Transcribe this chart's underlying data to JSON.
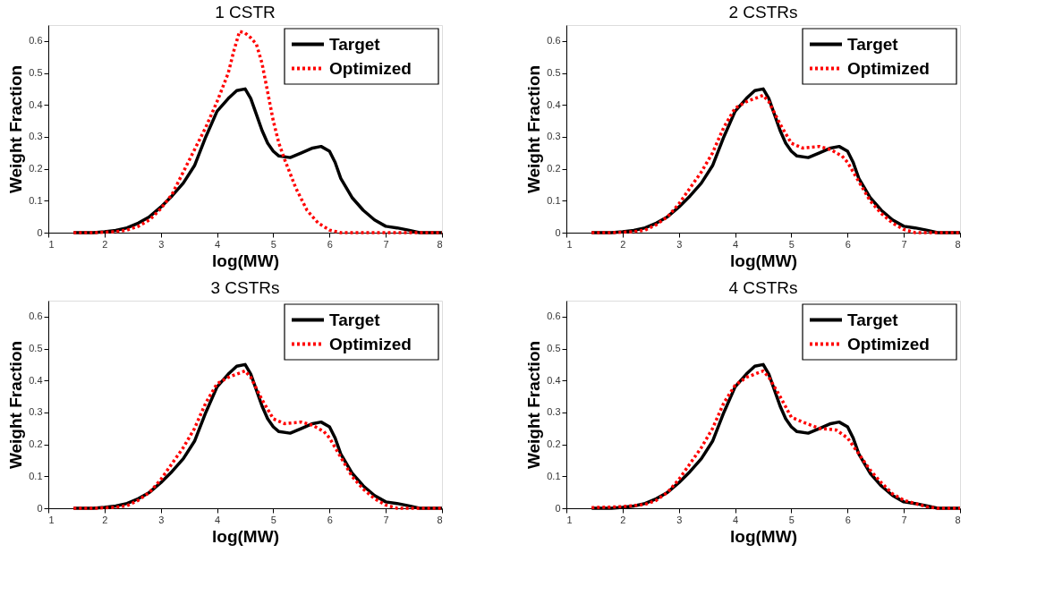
{
  "chart_data": [
    {
      "type": "line",
      "title": "1 CSTR",
      "xlabel": "log(MW)",
      "ylabel": "Weight Fraction",
      "xlim": [
        1,
        8
      ],
      "ylim": [
        0,
        0.65
      ],
      "xticks": [
        1,
        2,
        3,
        4,
        5,
        6,
        7,
        8
      ],
      "yticks": [
        0,
        0.1,
        0.2,
        0.3,
        0.4,
        0.5,
        0.6
      ],
      "grid": false,
      "legend": "top right",
      "series": [
        {
          "name": "Target",
          "color": "#000000",
          "line_style": "solid",
          "x": [
            1.45,
            1.6,
            1.8,
            2.0,
            2.2,
            2.4,
            2.6,
            2.8,
            3.0,
            3.2,
            3.4,
            3.6,
            3.8,
            4.0,
            4.2,
            4.35,
            4.5,
            4.6,
            4.7,
            4.8,
            4.9,
            5.0,
            5.1,
            5.3,
            5.5,
            5.7,
            5.85,
            6.0,
            6.1,
            6.2,
            6.4,
            6.6,
            6.8,
            7.0,
            7.2,
            7.4,
            7.6,
            7.8,
            8.0
          ],
          "values": [
            0,
            0,
            0,
            0.003,
            0.007,
            0.015,
            0.03,
            0.05,
            0.08,
            0.115,
            0.155,
            0.21,
            0.3,
            0.38,
            0.42,
            0.445,
            0.45,
            0.42,
            0.37,
            0.32,
            0.28,
            0.255,
            0.24,
            0.235,
            0.25,
            0.265,
            0.27,
            0.255,
            0.22,
            0.17,
            0.11,
            0.07,
            0.04,
            0.02,
            0.015,
            0.008,
            0,
            0,
            0
          ]
        },
        {
          "name": "Optimized",
          "color": "#ff0000",
          "line_style": "dotted",
          "x": [
            1.45,
            1.8,
            2.2,
            2.4,
            2.6,
            2.8,
            3.0,
            3.2,
            3.4,
            3.6,
            3.8,
            4.0,
            4.2,
            4.3,
            4.4,
            4.5,
            4.6,
            4.7,
            4.8,
            4.9,
            5.0,
            5.1,
            5.2,
            5.4,
            5.6,
            5.8,
            6.0,
            6.2,
            6.5,
            7.0,
            8.0
          ],
          "values": [
            0,
            0,
            0.003,
            0.008,
            0.02,
            0.04,
            0.075,
            0.12,
            0.19,
            0.26,
            0.33,
            0.41,
            0.5,
            0.57,
            0.63,
            0.625,
            0.61,
            0.59,
            0.53,
            0.44,
            0.35,
            0.28,
            0.23,
            0.14,
            0.07,
            0.03,
            0.008,
            0,
            0,
            0,
            0
          ]
        }
      ]
    },
    {
      "type": "line",
      "title": "2 CSTRs",
      "xlabel": "log(MW)",
      "ylabel": "Weight Fraction",
      "xlim": [
        1,
        8
      ],
      "ylim": [
        0,
        0.65
      ],
      "xticks": [
        1,
        2,
        3,
        4,
        5,
        6,
        7,
        8
      ],
      "yticks": [
        0,
        0.1,
        0.2,
        0.3,
        0.4,
        0.5,
        0.6
      ],
      "grid": false,
      "legend": "top right",
      "series": [
        {
          "name": "Target",
          "color": "#000000",
          "line_style": "solid",
          "x": [
            1.45,
            1.6,
            1.8,
            2.0,
            2.2,
            2.4,
            2.6,
            2.8,
            3.0,
            3.2,
            3.4,
            3.6,
            3.8,
            4.0,
            4.2,
            4.35,
            4.5,
            4.6,
            4.7,
            4.8,
            4.9,
            5.0,
            5.1,
            5.3,
            5.5,
            5.7,
            5.85,
            6.0,
            6.1,
            6.2,
            6.4,
            6.6,
            6.8,
            7.0,
            7.2,
            7.4,
            7.6,
            7.8,
            8.0
          ],
          "values": [
            0,
            0,
            0,
            0.003,
            0.007,
            0.015,
            0.03,
            0.05,
            0.08,
            0.115,
            0.155,
            0.21,
            0.3,
            0.38,
            0.42,
            0.445,
            0.45,
            0.42,
            0.37,
            0.32,
            0.28,
            0.255,
            0.24,
            0.235,
            0.25,
            0.265,
            0.27,
            0.255,
            0.22,
            0.17,
            0.11,
            0.07,
            0.04,
            0.02,
            0.015,
            0.008,
            0,
            0,
            0
          ]
        },
        {
          "name": "Optimized",
          "color": "#ff0000",
          "line_style": "dotted",
          "x": [
            1.45,
            1.8,
            2.2,
            2.4,
            2.6,
            2.8,
            3.0,
            3.2,
            3.4,
            3.6,
            3.8,
            4.0,
            4.2,
            4.5,
            4.6,
            4.8,
            5.0,
            5.2,
            5.5,
            5.7,
            5.9,
            6.0,
            6.2,
            6.4,
            6.6,
            6.8,
            7.0,
            7.2,
            8.0
          ],
          "values": [
            0,
            0,
            0.003,
            0.008,
            0.025,
            0.05,
            0.09,
            0.14,
            0.19,
            0.25,
            0.33,
            0.39,
            0.41,
            0.43,
            0.41,
            0.34,
            0.28,
            0.265,
            0.27,
            0.26,
            0.24,
            0.22,
            0.16,
            0.1,
            0.06,
            0.03,
            0.01,
            0,
            0
          ]
        }
      ]
    },
    {
      "type": "line",
      "title": "3 CSTRs",
      "xlabel": "log(MW)",
      "ylabel": "Weight Fraction",
      "xlim": [
        1,
        8
      ],
      "ylim": [
        0,
        0.65
      ],
      "xticks": [
        1,
        2,
        3,
        4,
        5,
        6,
        7,
        8
      ],
      "yticks": [
        0,
        0.1,
        0.2,
        0.3,
        0.4,
        0.5,
        0.6
      ],
      "grid": false,
      "legend": "top right",
      "series": [
        {
          "name": "Target",
          "color": "#000000",
          "line_style": "solid",
          "x": [
            1.45,
            1.6,
            1.8,
            2.0,
            2.2,
            2.4,
            2.6,
            2.8,
            3.0,
            3.2,
            3.4,
            3.6,
            3.8,
            4.0,
            4.2,
            4.35,
            4.5,
            4.6,
            4.7,
            4.8,
            4.9,
            5.0,
            5.1,
            5.3,
            5.5,
            5.7,
            5.85,
            6.0,
            6.1,
            6.2,
            6.4,
            6.6,
            6.8,
            7.0,
            7.2,
            7.4,
            7.6,
            7.8,
            8.0
          ],
          "values": [
            0,
            0,
            0,
            0.003,
            0.007,
            0.015,
            0.03,
            0.05,
            0.08,
            0.115,
            0.155,
            0.21,
            0.3,
            0.38,
            0.42,
            0.445,
            0.45,
            0.42,
            0.37,
            0.32,
            0.28,
            0.255,
            0.24,
            0.235,
            0.25,
            0.265,
            0.27,
            0.255,
            0.22,
            0.17,
            0.11,
            0.07,
            0.04,
            0.02,
            0.015,
            0.008,
            0,
            0,
            0
          ]
        },
        {
          "name": "Optimized",
          "color": "#ff0000",
          "line_style": "dotted",
          "x": [
            1.45,
            1.8,
            2.2,
            2.4,
            2.6,
            2.8,
            3.0,
            3.2,
            3.4,
            3.6,
            3.8,
            4.0,
            4.2,
            4.5,
            4.6,
            4.8,
            5.0,
            5.2,
            5.5,
            5.7,
            5.9,
            6.0,
            6.2,
            6.4,
            6.6,
            6.8,
            7.0,
            7.2,
            8.0
          ],
          "values": [
            0,
            0,
            0.003,
            0.008,
            0.025,
            0.05,
            0.09,
            0.14,
            0.19,
            0.25,
            0.33,
            0.39,
            0.41,
            0.43,
            0.41,
            0.34,
            0.28,
            0.265,
            0.27,
            0.26,
            0.24,
            0.22,
            0.16,
            0.1,
            0.06,
            0.03,
            0.01,
            0,
            0
          ]
        }
      ]
    },
    {
      "type": "line",
      "title": "4 CSTRs",
      "xlabel": "log(MW)",
      "ylabel": "Weight Fraction",
      "xlim": [
        1,
        8
      ],
      "ylim": [
        0,
        0.65
      ],
      "xticks": [
        1,
        2,
        3,
        4,
        5,
        6,
        7,
        8
      ],
      "yticks": [
        0,
        0.1,
        0.2,
        0.3,
        0.4,
        0.5,
        0.6
      ],
      "grid": false,
      "legend": "top right",
      "series": [
        {
          "name": "Target",
          "color": "#000000",
          "line_style": "solid",
          "x": [
            1.45,
            1.6,
            1.8,
            2.0,
            2.2,
            2.4,
            2.6,
            2.8,
            3.0,
            3.2,
            3.4,
            3.6,
            3.8,
            4.0,
            4.2,
            4.35,
            4.5,
            4.6,
            4.7,
            4.8,
            4.9,
            5.0,
            5.1,
            5.3,
            5.5,
            5.7,
            5.85,
            6.0,
            6.1,
            6.2,
            6.4,
            6.6,
            6.8,
            7.0,
            7.2,
            7.4,
            7.6,
            7.8,
            8.0
          ],
          "values": [
            0,
            0,
            0,
            0.003,
            0.007,
            0.015,
            0.03,
            0.05,
            0.08,
            0.115,
            0.155,
            0.21,
            0.3,
            0.38,
            0.42,
            0.445,
            0.45,
            0.42,
            0.37,
            0.32,
            0.28,
            0.255,
            0.24,
            0.235,
            0.25,
            0.265,
            0.27,
            0.255,
            0.22,
            0.17,
            0.11,
            0.07,
            0.04,
            0.02,
            0.015,
            0.008,
            0,
            0,
            0
          ]
        },
        {
          "name": "Optimized",
          "color": "#ff0000",
          "line_style": "dotted",
          "x": [
            1.45,
            2.0,
            2.2,
            2.4,
            2.6,
            2.8,
            3.0,
            3.2,
            3.4,
            3.6,
            3.8,
            4.0,
            4.2,
            4.5,
            4.6,
            4.8,
            5.0,
            5.2,
            5.5,
            5.8,
            6.0,
            6.2,
            6.4,
            6.6,
            6.8,
            7.0,
            7.2,
            7.4,
            7.6,
            8.0
          ],
          "values": [
            0.002,
            0.005,
            0.008,
            0.012,
            0.025,
            0.05,
            0.09,
            0.14,
            0.19,
            0.25,
            0.33,
            0.385,
            0.41,
            0.43,
            0.41,
            0.35,
            0.285,
            0.27,
            0.25,
            0.245,
            0.22,
            0.17,
            0.12,
            0.08,
            0.045,
            0.025,
            0.015,
            0.005,
            0,
            0
          ]
        }
      ]
    }
  ]
}
